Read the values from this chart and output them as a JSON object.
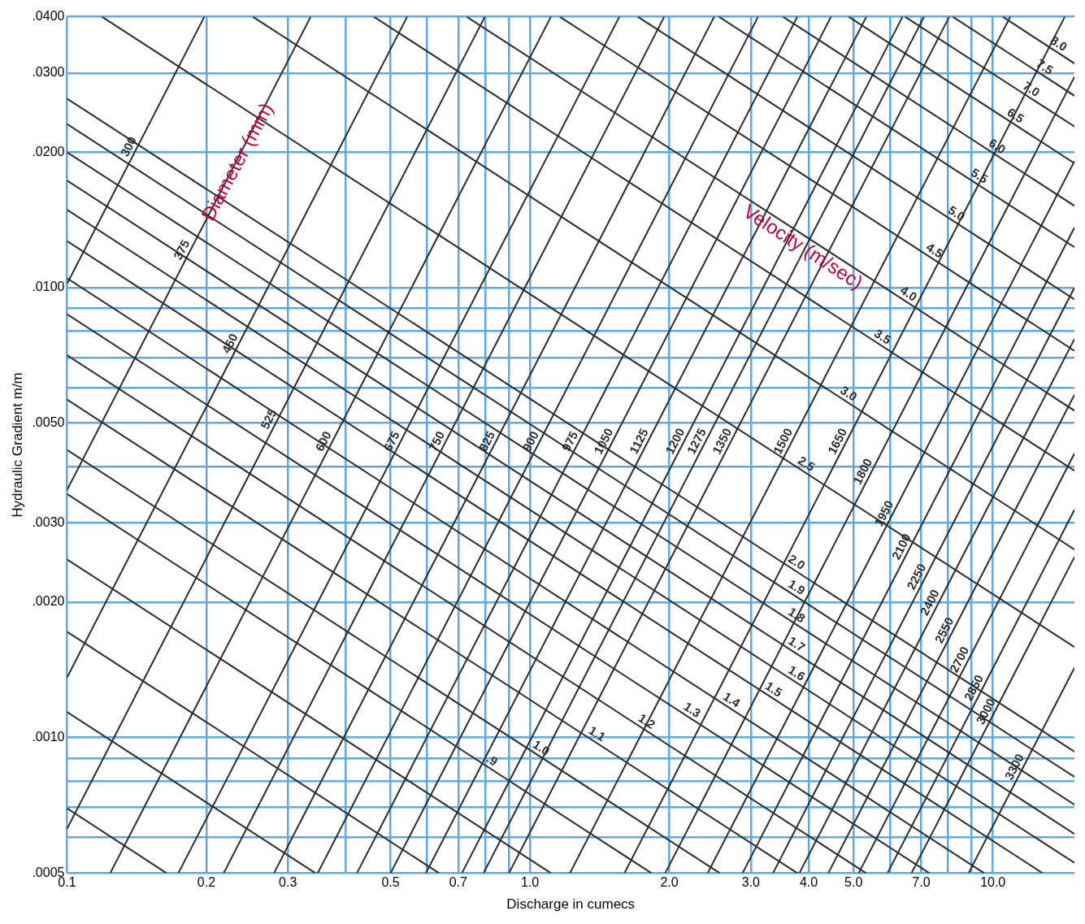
{
  "chart_data": {
    "type": "line",
    "xlabel": "Discharge in cumecs",
    "ylabel": "Hydraulic Gradient m/m",
    "log": "xy",
    "grid": true,
    "legend": false,
    "marker": "none",
    "line_style": "solid",
    "xlim": [
      0.1,
      15
    ],
    "ylim": [
      0.0005,
      0.04
    ],
    "xticks": [
      0.1,
      0.2,
      0.3,
      {
        "value": 0.4,
        "label": null
      },
      0.5,
      {
        "value": 0.6,
        "label": null
      },
      0.7,
      {
        "value": 0.8,
        "label": null
      },
      {
        "value": 0.9,
        "label": null
      },
      {
        "value": 1,
        "label": "1.0"
      },
      {
        "value": 2,
        "label": "2.0"
      },
      {
        "value": 3,
        "label": "3.0"
      },
      {
        "value": 4,
        "label": "4.0"
      },
      {
        "value": 5,
        "label": "5.0"
      },
      {
        "value": 6,
        "label": null
      },
      {
        "value": 7,
        "label": "7.0"
      },
      {
        "value": 8,
        "label": null
      },
      {
        "value": 9,
        "label": null
      },
      {
        "value": 10,
        "label": "10.0"
      }
    ],
    "yticks": [
      {
        "value": 0.0005,
        "label": ".0005"
      },
      {
        "value": 0.0006,
        "label": null
      },
      {
        "value": 0.0007,
        "label": null
      },
      {
        "value": 0.0008,
        "label": null
      },
      {
        "value": 0.0009,
        "label": null
      },
      {
        "value": 0.001,
        "label": ".0010"
      },
      {
        "value": 0.002,
        "label": ".0020"
      },
      {
        "value": 0.003,
        "label": ".0030"
      },
      {
        "value": 0.004,
        "label": null
      },
      {
        "value": 0.005,
        "label": ".0050"
      },
      {
        "value": 0.006,
        "label": null
      },
      {
        "value": 0.007,
        "label": null
      },
      {
        "value": 0.008,
        "label": null
      },
      {
        "value": 0.009,
        "label": null
      },
      {
        "value": 0.01,
        "label": ".0100"
      },
      {
        "value": 0.02,
        "label": ".0200"
      },
      {
        "value": 0.03,
        "label": ".0300"
      },
      {
        "value": 0.04,
        "label": ".0400"
      }
    ],
    "annotations": [
      "Diameter (mm)",
      "Velocity (m/sec)"
    ],
    "series": [
      {
        "name": "300",
        "color": "#2b2b2b",
        "x": [
          0.1,
          0.198
        ],
        "values": [
          0.0102,
          0.04
        ]
      },
      {
        "name": "375",
        "color": "#2b2b2b",
        "x": [
          0.1,
          0.336
        ],
        "values": [
          0.00355,
          0.04
        ]
      },
      {
        "name": "450",
        "color": "#2b2b2b",
        "x": [
          0.1,
          0.543
        ],
        "values": [
          0.00136,
          0.04
        ]
      },
      {
        "name": "525",
        "color": "#2b2b2b",
        "x": [
          0.1,
          0.799
        ],
        "values": [
          0.000627,
          0.04
        ]
      },
      {
        "name": "600",
        "color": "#2b2b2b",
        "x": [
          0.124,
          1.11
        ],
        "values": [
          0.0005,
          0.04
        ]
      },
      {
        "name": "675",
        "color": "#2b2b2b",
        "x": [
          0.174,
          1.56
        ],
        "values": [
          0.0005,
          0.04
        ]
      },
      {
        "name": "750",
        "color": "#2b2b2b",
        "x": [
          0.218,
          1.95
        ],
        "values": [
          0.0005,
          0.04
        ]
      },
      {
        "name": "825",
        "color": "#2b2b2b",
        "x": [
          0.28,
          2.5
        ],
        "values": [
          0.0005,
          0.04
        ]
      },
      {
        "name": "900",
        "color": "#2b2b2b",
        "x": [
          0.348,
          3.11
        ],
        "values": [
          0.0005,
          0.04
        ]
      },
      {
        "name": "975",
        "color": "#2b2b2b",
        "x": [
          0.423,
          3.78
        ],
        "values": [
          0.0005,
          0.04
        ]
      },
      {
        "name": "1050",
        "color": "#2b2b2b",
        "x": [
          0.5,
          4.47
        ],
        "values": [
          0.0005,
          0.04
        ]
      },
      {
        "name": "1125",
        "color": "#2b2b2b",
        "x": [
          0.596,
          5.33
        ],
        "values": [
          0.0005,
          0.04
        ]
      },
      {
        "name": "1200",
        "color": "#2b2b2b",
        "x": [
          0.713,
          6.38
        ],
        "values": [
          0.0005,
          0.04
        ]
      },
      {
        "name": "1275",
        "color": "#2b2b2b",
        "x": [
          0.794,
          7.1
        ],
        "values": [
          0.0005,
          0.04
        ]
      },
      {
        "name": "1350",
        "color": "#2b2b2b",
        "x": [
          0.901,
          8.05
        ],
        "values": [
          0.0005,
          0.04
        ]
      },
      {
        "name": "1500",
        "color": "#2b2b2b",
        "x": [
          1.22,
          10.9
        ],
        "values": [
          0.0005,
          0.04
        ]
      },
      {
        "name": "1650",
        "color": "#2b2b2b",
        "x": [
          1.6,
          14.3
        ],
        "values": [
          0.0005,
          0.04
        ]
      },
      {
        "name": "1800",
        "color": "#2b2b2b",
        "x": [
          1.96,
          15
        ],
        "values": [
          0.0005,
          0.0294
        ]
      },
      {
        "name": "1950",
        "color": "#2b2b2b",
        "x": [
          2.42,
          15
        ],
        "values": [
          0.0005,
          0.0191
        ]
      },
      {
        "name": "2100",
        "color": "#2b2b2b",
        "x": [
          2.88,
          15
        ],
        "values": [
          0.0005,
          0.0136
        ]
      },
      {
        "name": "2250",
        "color": "#2b2b2b",
        "x": [
          3.35,
          15
        ],
        "values": [
          0.0005,
          0.01
        ]
      },
      {
        "name": "2400",
        "color": "#2b2b2b",
        "x": [
          3.82,
          15
        ],
        "values": [
          0.0005,
          0.00769
        ]
      },
      {
        "name": "2550",
        "color": "#2b2b2b",
        "x": [
          4.41,
          15
        ],
        "values": [
          0.0005,
          0.00578
        ]
      },
      {
        "name": "2700",
        "color": "#2b2b2b",
        "x": [
          5.13,
          15
        ],
        "values": [
          0.0005,
          0.00428
        ]
      },
      {
        "name": "2850",
        "color": "#2b2b2b",
        "x": [
          5.92,
          15
        ],
        "values": [
          0.0005,
          0.00321
        ]
      },
      {
        "name": "3000",
        "color": "#2b2b2b",
        "x": [
          6.67,
          15
        ],
        "values": [
          0.0005,
          0.00252
        ]
      },
      {
        "name": "3300",
        "color": "#2b2b2b",
        "x": [
          8.86,
          15
        ],
        "values": [
          0.0005,
          0.00143
        ]
      },
      {
        "color": "#2b2b2b",
        "x": [
          0.1,
          0.164
        ],
        "values": [
          0.000697,
          0.0005
        ]
      },
      {
        "color": "#2b2b2b",
        "x": [
          0.1,
          0.344
        ],
        "values": [
          0.00114,
          0.0005
        ]
      },
      {
        "color": "#2b2b2b",
        "x": [
          0.1,
          0.636
        ],
        "values": [
          0.00172,
          0.0005
        ]
      },
      {
        "color": "#2b2b2b",
        "x": [
          0.1,
          1.11
        ],
        "values": [
          0.00249,
          0.0005
        ]
      },
      {
        "name": ".9",
        "color": "#2b2b2b",
        "x": [
          0.1,
          1.83
        ],
        "values": [
          0.00348,
          0.0005
        ]
      },
      {
        "name": "1.0",
        "color": "#2b2b2b",
        "x": [
          0.1,
          2.57
        ],
        "values": [
          0.00436,
          0.0005
        ]
      },
      {
        "name": "1.1",
        "color": "#2b2b2b",
        "x": [
          0.1,
          3.78
        ],
        "values": [
          0.00564,
          0.0005
        ]
      },
      {
        "name": "1.2",
        "color": "#2b2b2b",
        "x": [
          0.1,
          5.32
        ],
        "values": [
          0.00708,
          0.0005
        ]
      },
      {
        "name": "1.3",
        "color": "#2b2b2b",
        "x": [
          0.1,
          7.29
        ],
        "values": [
          0.00873,
          0.0005
        ]
      },
      {
        "name": "1.4",
        "color": "#2b2b2b",
        "x": [
          0.1,
          9.57
        ],
        "values": [
          0.0105,
          0.0005
        ]
      },
      {
        "name": "1.5",
        "color": "#2b2b2b",
        "x": [
          0.1,
          12.8
        ],
        "values": [
          0.0127,
          0.0005
        ]
      },
      {
        "name": "1.6",
        "color": "#2b2b2b",
        "x": [
          0.1,
          15
        ],
        "values": [
          0.0149,
          0.000527
        ]
      },
      {
        "name": "1.7",
        "color": "#2b2b2b",
        "x": [
          0.1,
          15
        ],
        "values": [
          0.0173,
          0.000611
        ]
      },
      {
        "name": "1.8",
        "color": "#2b2b2b",
        "x": [
          0.1,
          15
        ],
        "values": [
          0.02,
          0.00071
        ]
      },
      {
        "name": "1.9",
        "color": "#2b2b2b",
        "x": [
          0.1,
          15
        ],
        "values": [
          0.0231,
          0.000818
        ]
      },
      {
        "name": "2.0",
        "color": "#2b2b2b",
        "x": [
          0.1,
          15
        ],
        "values": [
          0.0263,
          0.000931
        ]
      },
      {
        "name": "2.5",
        "color": "#2b2b2b",
        "x": [
          0.119,
          15
        ],
        "values": [
          0.04,
          0.00159
        ]
      },
      {
        "name": "3.0",
        "color": "#2b2b2b",
        "x": [
          0.252,
          15
        ],
        "values": [
          0.04,
          0.00262
        ]
      },
      {
        "name": "3.5",
        "color": "#2b2b2b",
        "x": [
          0.46,
          15
        ],
        "values": [
          0.04,
          0.00392
        ]
      },
      {
        "name": "4.0",
        "color": "#2b2b2b",
        "x": [
          0.73,
          15
        ],
        "values": [
          0.04,
          0.00533
        ]
      },
      {
        "name": "4.5",
        "color": "#2b2b2b",
        "x": [
          1.16,
          15
        ],
        "values": [
          0.04,
          0.00724
        ]
      },
      {
        "name": "5.0",
        "color": "#2b2b2b",
        "x": [
          1.71,
          15
        ],
        "values": [
          0.04,
          0.00942
        ]
      },
      {
        "name": "5.5",
        "color": "#2b2b2b",
        "x": [
          2.56,
          15
        ],
        "values": [
          0.04,
          0.0123
        ]
      },
      {
        "name": "6.0",
        "color": "#2b2b2b",
        "x": [
          3.52,
          15
        ],
        "values": [
          0.04,
          0.0152
        ]
      },
      {
        "name": "6.5",
        "color": "#2b2b2b",
        "x": [
          4.88,
          15
        ],
        "values": [
          0.04,
          0.0189
        ]
      },
      {
        "name": "7.0",
        "color": "#2b2b2b",
        "x": [
          6.46,
          15
        ],
        "values": [
          0.04,
          0.0228
        ]
      },
      {
        "name": "7.5",
        "color": "#2b2b2b",
        "x": [
          8.19,
          15
        ],
        "values": [
          0.04,
          0.0267
        ]
      },
      {
        "name": "8.0",
        "color": "#2b2b2b",
        "x": [
          10.5,
          15
        ],
        "values": [
          0.04,
          0.0315
        ]
      }
    ]
  }
}
